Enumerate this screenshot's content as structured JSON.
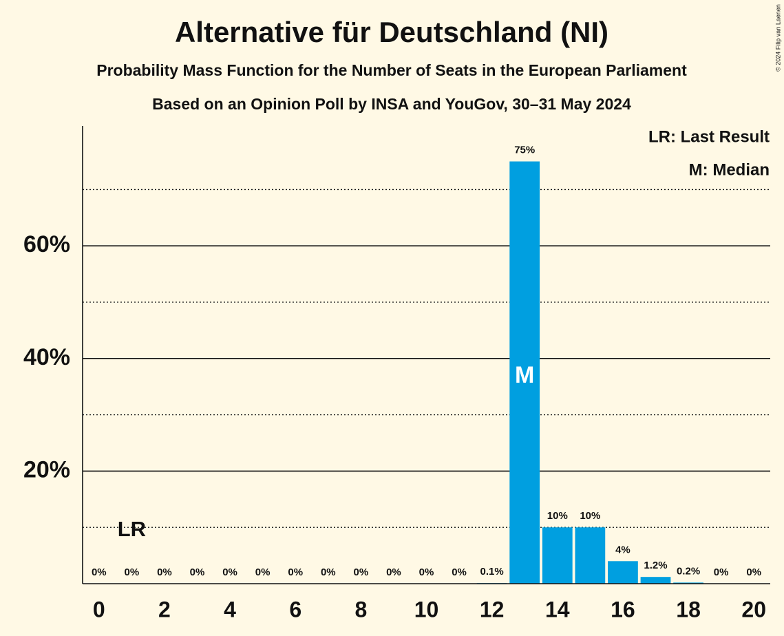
{
  "chart_data": {
    "type": "bar",
    "title": "Alternative für Deutschland (NI)",
    "subtitle": "Probability Mass Function for the Number of Seats in the European Parliament",
    "subtitle2": "Based on an Opinion Poll by INSA and YouGov, 30–31 May 2024",
    "copyright": "© 2024 Filip van Laenen",
    "legend": [
      "LR: Last Result",
      "M: Median"
    ],
    "x": [
      0,
      1,
      2,
      3,
      4,
      5,
      6,
      7,
      8,
      9,
      10,
      11,
      12,
      13,
      14,
      15,
      16,
      17,
      18,
      19,
      20
    ],
    "values": [
      0,
      0,
      0,
      0,
      0,
      0,
      0,
      0,
      0,
      0,
      0,
      0,
      0.1,
      75,
      10,
      10,
      4,
      1.2,
      0.2,
      0,
      0
    ],
    "value_labels": [
      "0%",
      "0%",
      "0%",
      "0%",
      "0%",
      "0%",
      "0%",
      "0%",
      "0%",
      "0%",
      "0%",
      "0%",
      "0.1%",
      "75%",
      "10%",
      "10%",
      "4%",
      "1.2%",
      "0.2%",
      "0%",
      "0%"
    ],
    "color": "#009fe0",
    "xlim": [
      -0.5,
      20.5
    ],
    "xticks": [
      0,
      2,
      4,
      6,
      8,
      10,
      12,
      14,
      16,
      18,
      20
    ],
    "ylim": [
      0,
      81.3
    ],
    "yticks": [
      {
        "value": 20,
        "label": "20%"
      },
      {
        "value": 40,
        "label": "40%"
      },
      {
        "value": 60,
        "label": "60%"
      }
    ],
    "minor_yticks": [
      10,
      30,
      50,
      70
    ],
    "grid": true,
    "annotations": [
      {
        "label": "LR",
        "x": 1
      },
      {
        "label": "M",
        "x": 13
      }
    ]
  }
}
